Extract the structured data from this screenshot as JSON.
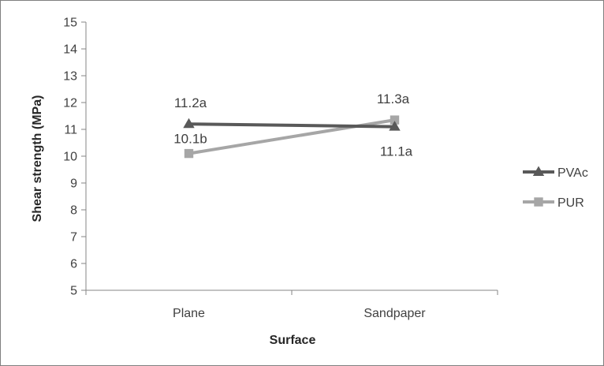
{
  "chart_data": {
    "type": "line",
    "title": "",
    "xlabel": "Surface",
    "ylabel": "Shear strength (MPa)",
    "categories": [
      "Plane",
      "Sandpaper"
    ],
    "ylim": [
      5,
      15
    ],
    "yticks": [
      5,
      6,
      7,
      8,
      9,
      10,
      11,
      12,
      13,
      14,
      15
    ],
    "ytick_labels": [
      "5",
      "6",
      "7",
      "8",
      "9",
      "10",
      "11",
      "12",
      "13",
      "14",
      "15"
    ],
    "grid": false,
    "legend_position": "right",
    "series": [
      {
        "name": "PVAc",
        "values": [
          11.2,
          11.1
        ],
        "labels": [
          "11.2a",
          "11.1a"
        ],
        "color": "#595959",
        "marker": "triangle"
      },
      {
        "name": "PUR",
        "values": [
          10.1,
          11.35
        ],
        "labels": [
          "10.1b",
          "11.3a"
        ],
        "color": "#a6a6a6",
        "marker": "square"
      }
    ]
  }
}
